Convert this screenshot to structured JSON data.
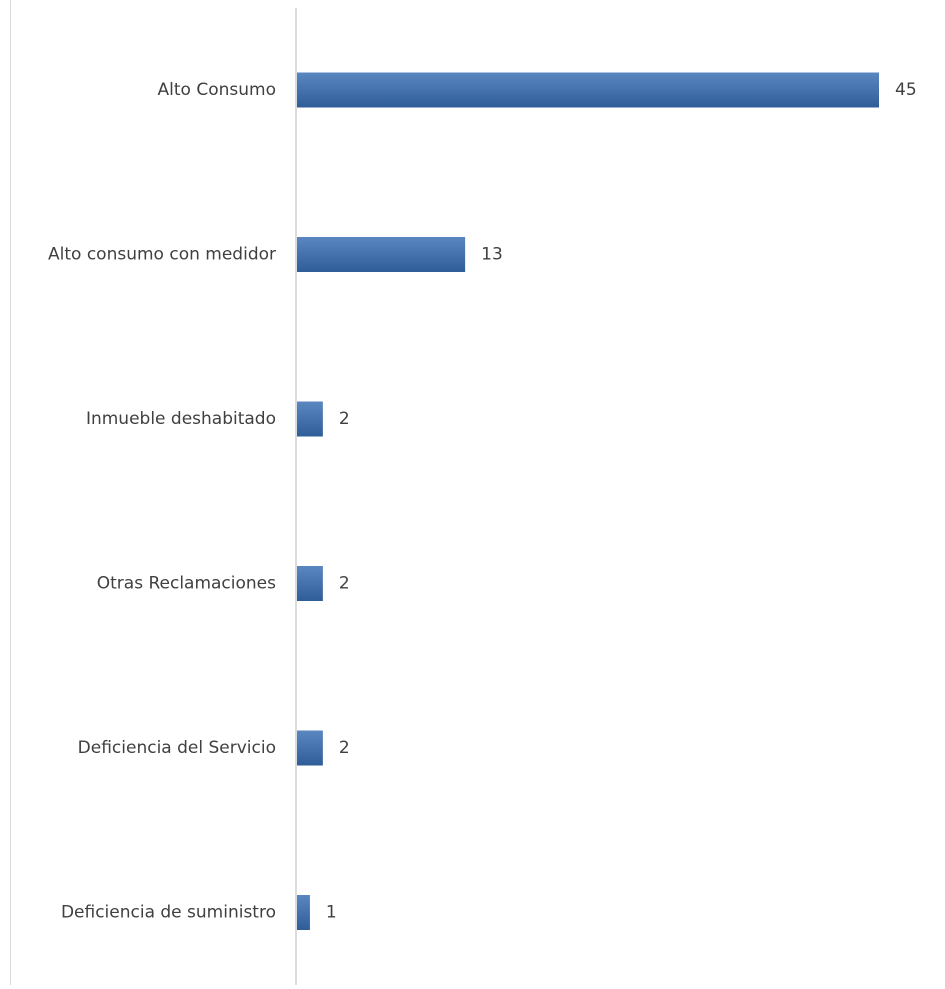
{
  "chart_data": {
    "type": "bar",
    "orientation": "horizontal",
    "categories": [
      "Alto Consumo",
      "Alto consumo con medidor",
      "Inmueble deshabitado",
      "Otras Reclamaciones",
      "Deficiencia del Servicio",
      "Deficiencia de suministro"
    ],
    "values": [
      45,
      13,
      2,
      2,
      2,
      1
    ],
    "data_labels": [
      "45",
      "13",
      "2",
      "2",
      "2",
      "1"
    ],
    "title": "",
    "xlabel": "",
    "ylabel": "",
    "xlim": [
      0,
      45
    ],
    "grid": false,
    "legend": "none",
    "colors": {
      "bar_top": "#5b87c1",
      "bar_bottom": "#2f5d98",
      "axis": "#d0d0d0",
      "label_text": "#404040"
    }
  }
}
